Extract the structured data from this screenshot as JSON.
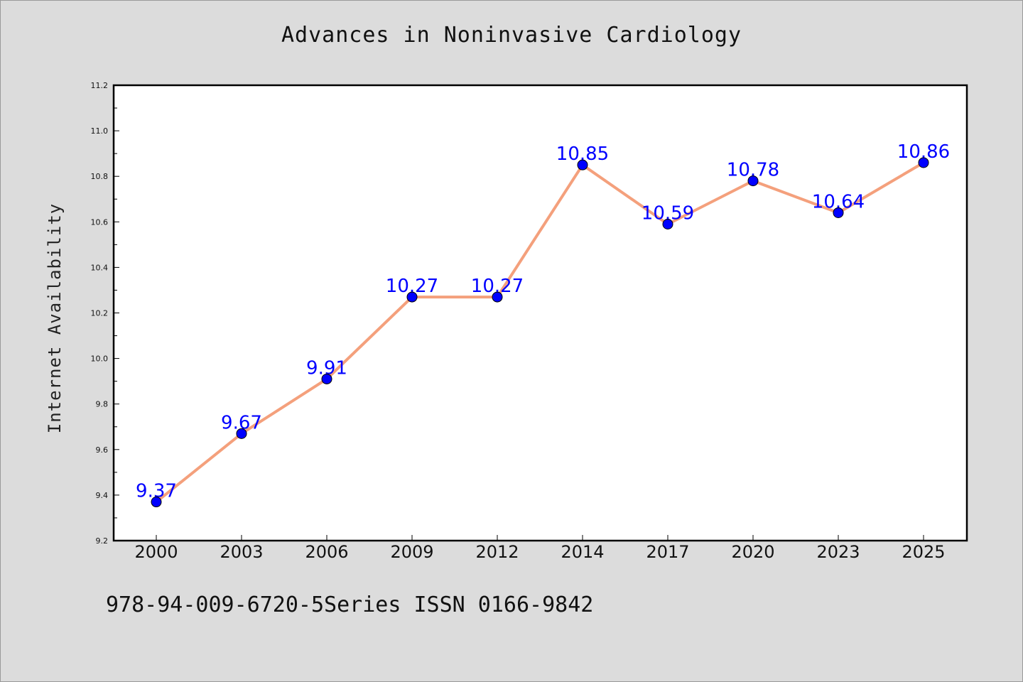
{
  "chart_data": {
    "type": "line",
    "title": "Advances in Noninvasive Cardiology",
    "xlabel": "",
    "ylabel": "Internet Availability",
    "categories": [
      "2000",
      "2003",
      "2006",
      "2009",
      "2012",
      "2014",
      "2017",
      "2020",
      "2023",
      "2025"
    ],
    "series": [
      {
        "values": [
          9.37,
          9.67,
          9.91,
          10.27,
          10.27,
          10.85,
          10.59,
          10.78,
          10.64,
          10.86
        ],
        "data_labels": [
          "9.37",
          "9.67",
          "9.91",
          "10.27",
          "10.27",
          "10.85",
          "10.59",
          "10.78",
          "10.64",
          "10.86"
        ],
        "line_color": "#f4a07c",
        "marker_color": "#0000ff",
        "label_color": "#0000ff"
      }
    ],
    "ylim": [
      9.2,
      11.2
    ],
    "yticks": [
      9.2,
      9.4,
      9.6,
      9.8,
      10.0,
      10.2,
      10.4,
      10.6,
      10.8,
      11.0,
      11.2
    ],
    "ytick_labels": [
      "9.2",
      "9.4",
      "9.6",
      "9.8",
      "10.0",
      "10.2",
      "10.4",
      "10.6",
      "10.8",
      "11.0",
      "11.2"
    ],
    "grid": false,
    "legend": "none"
  },
  "footnote": "978-94-009-6720-5Series ISSN 0166-9842"
}
